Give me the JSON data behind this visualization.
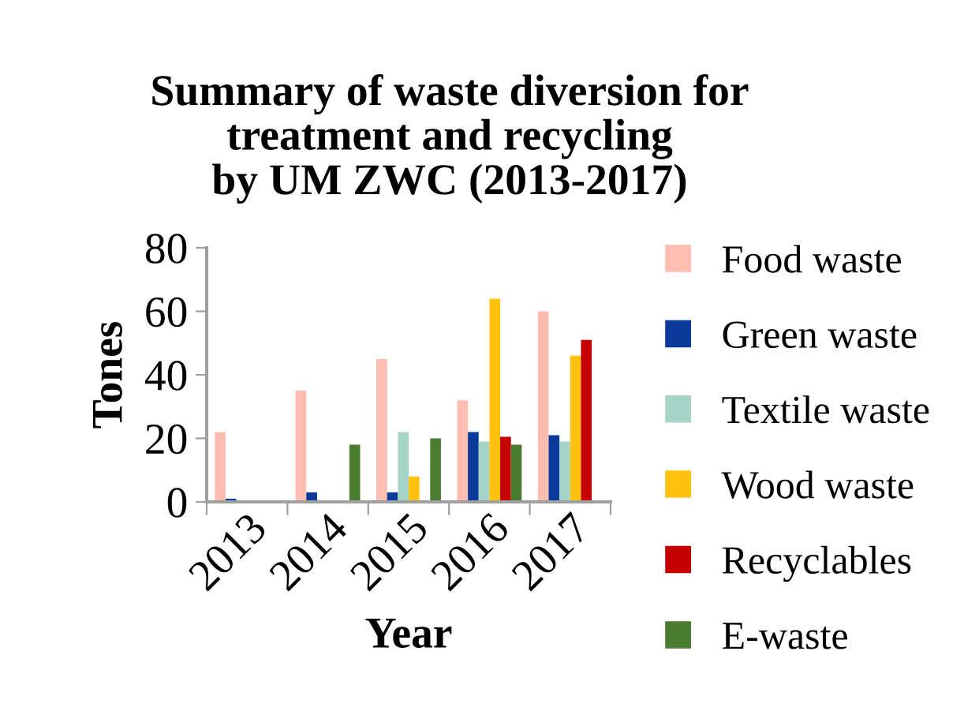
{
  "chart_data": {
    "type": "bar",
    "title": "Summary of waste diversion for\ntreatment and recycling\nby UM ZWC (2013-2017)",
    "xlabel": "Year",
    "ylabel": "Tones",
    "categories": [
      "2013",
      "2014",
      "2015",
      "2016",
      "2017"
    ],
    "series": [
      {
        "name": "Food waste",
        "color": "#ffbcb0",
        "values": [
          22,
          35,
          45,
          32,
          60
        ]
      },
      {
        "name": "Green waste",
        "color": "#0a3a9a",
        "values": [
          1,
          3,
          3,
          22,
          21
        ]
      },
      {
        "name": "Textile waste",
        "color": "#a6d4c6",
        "values": [
          null,
          null,
          22,
          19,
          19
        ]
      },
      {
        "name": "Wood waste",
        "color": "#ffc20e",
        "values": [
          null,
          null,
          8,
          64,
          46
        ]
      },
      {
        "name": "Recyclables",
        "color": "#c40000",
        "values": [
          null,
          null,
          null,
          20.5,
          51
        ]
      },
      {
        "name": "E-waste",
        "color": "#4a7c32",
        "values": [
          null,
          18,
          20,
          18,
          null
        ]
      }
    ],
    "ylim": [
      0,
      80
    ],
    "yticks": [
      0,
      20,
      40,
      60,
      80
    ],
    "grid": false,
    "legend": "right"
  }
}
